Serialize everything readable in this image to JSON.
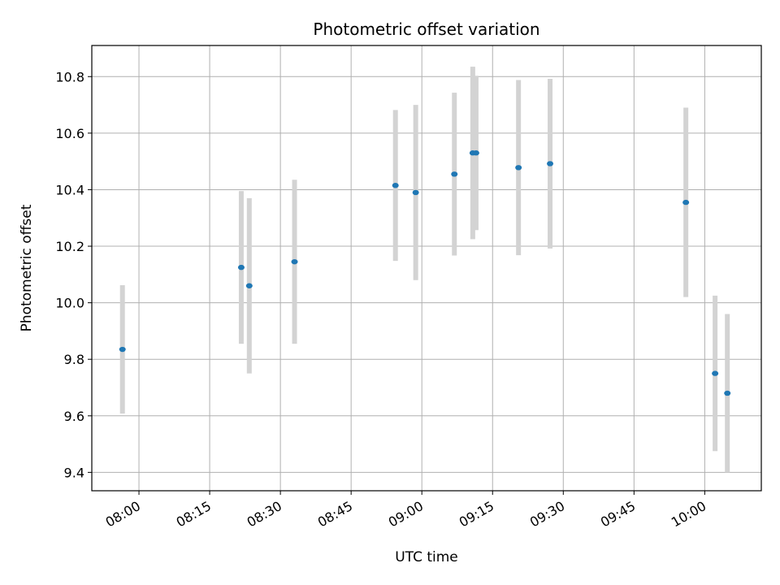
{
  "chart_data": {
    "type": "scatter",
    "title": "Photometric offset variation",
    "xlabel": "UTC time",
    "ylabel": "Photometric offset",
    "x_tick_labels": [
      "08:00",
      "08:15",
      "08:30",
      "08:45",
      "09:00",
      "09:15",
      "09:30",
      "09:45",
      "10:00"
    ],
    "x_ticks_minutes": [
      480,
      495,
      510,
      525,
      540,
      555,
      570,
      585,
      600
    ],
    "xlim_minutes": [
      470.0,
      612.0
    ],
    "y_tick_labels": [
      "9.4",
      "9.6",
      "9.8",
      "10.0",
      "10.2",
      "10.4",
      "10.6",
      "10.8"
    ],
    "y_ticks": [
      9.4,
      9.6,
      9.8,
      10.0,
      10.2,
      10.4,
      10.6,
      10.8
    ],
    "ylim": [
      9.335,
      10.91
    ],
    "grid": true,
    "point_color": "#1f77b4",
    "errorbar_color": "#d3d3d3",
    "series": [
      {
        "x_time": [
          "07:56:30",
          "08:21:42",
          "08:23:24",
          "08:33:00",
          "08:54:24",
          "08:58:42",
          "09:06:54",
          "09:10:48",
          "09:11:30",
          "09:20:30",
          "09:27:12",
          "09:56:00",
          "10:02:12",
          "10:04:48"
        ],
        "x_minutes": [
          476.5,
          501.7,
          503.4,
          513.0,
          534.4,
          538.7,
          546.9,
          550.8,
          551.5,
          560.5,
          567.2,
          596.0,
          602.2,
          604.8
        ],
        "y": [
          9.835,
          10.125,
          10.06,
          10.145,
          10.415,
          10.39,
          10.455,
          10.53,
          10.53,
          10.478,
          10.492,
          10.355,
          9.75,
          9.68
        ],
        "y_err": [
          0.227,
          0.27,
          0.31,
          0.29,
          0.267,
          0.31,
          0.288,
          0.305,
          0.273,
          0.31,
          0.3,
          0.335,
          0.275,
          0.28
        ]
      }
    ]
  }
}
